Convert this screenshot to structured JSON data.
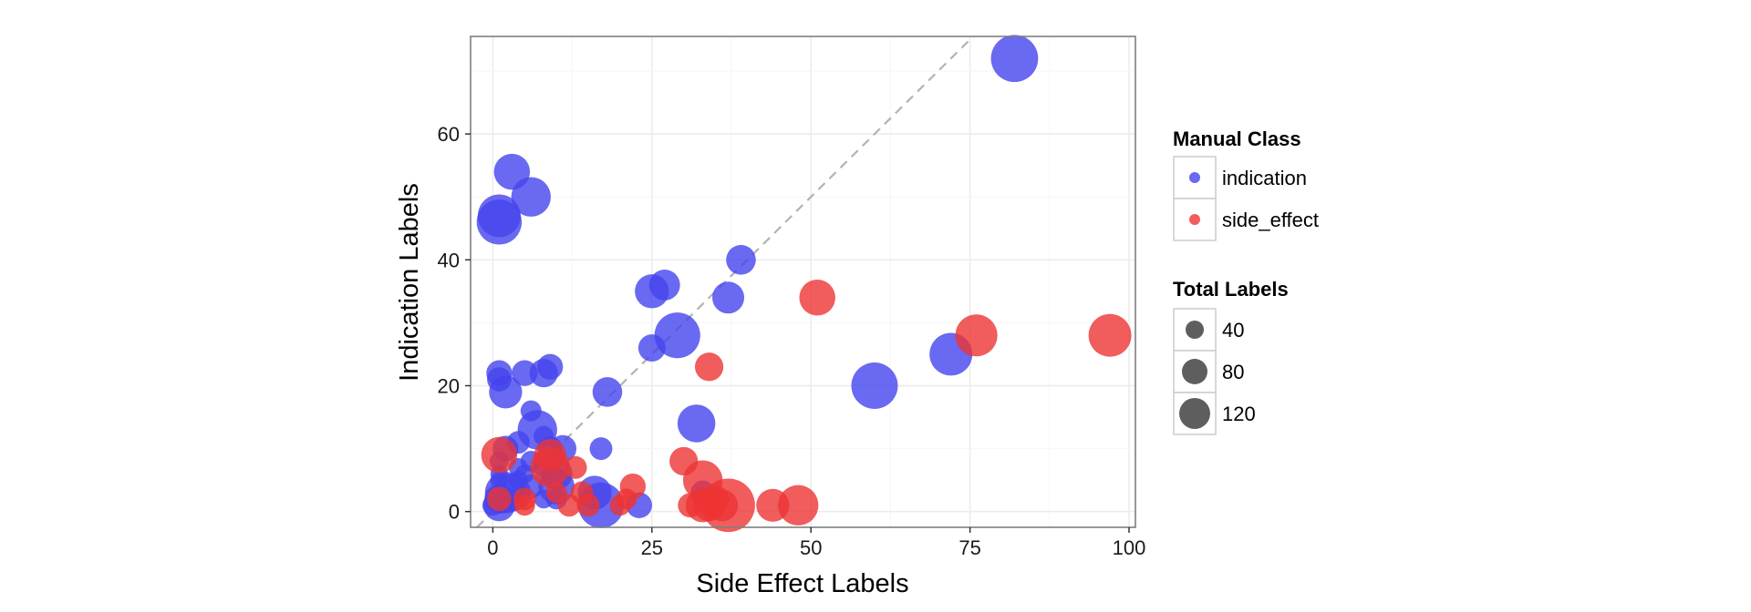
{
  "chart_data": {
    "type": "scatter",
    "title": "",
    "xlabel": "Side Effect Labels",
    "ylabel": "Indication Labels",
    "xlim": [
      -3.5,
      101
    ],
    "ylim": [
      -2.5,
      75.5
    ],
    "xticks": [
      0,
      25,
      50,
      75,
      100
    ],
    "yticks": [
      0,
      20,
      40,
      60
    ],
    "xtick_labels": [
      "0",
      "25",
      "50",
      "75",
      "100"
    ],
    "ytick_labels": [
      "0",
      "20",
      "40",
      "60"
    ],
    "grid": true,
    "reference_line": "y = x (dashed)",
    "legend_position": "right",
    "color_legend": {
      "title": "Manual Class",
      "entries": [
        {
          "label": "indication",
          "color": "#4444ee"
        },
        {
          "label": "side_effect",
          "color": "#ee3333"
        }
      ]
    },
    "size_legend": {
      "title": "Total Labels",
      "entries": [
        {
          "label": "40",
          "value": 40
        },
        {
          "label": "80",
          "value": 80
        },
        {
          "label": "120",
          "value": 120
        }
      ]
    },
    "series": [
      {
        "name": "indication",
        "color": "#4444ee",
        "points": [
          [
            82,
            72,
            150
          ],
          [
            3,
            54,
            80
          ],
          [
            6,
            50,
            100
          ],
          [
            1,
            47,
            120
          ],
          [
            1,
            46,
            135
          ],
          [
            39,
            40,
            50
          ],
          [
            27,
            36,
            55
          ],
          [
            25,
            35,
            70
          ],
          [
            37,
            34,
            60
          ],
          [
            29,
            28,
            140
          ],
          [
            25,
            26,
            40
          ],
          [
            72,
            25,
            120
          ],
          [
            60,
            20,
            145
          ],
          [
            1,
            22,
            35
          ],
          [
            5,
            22,
            35
          ],
          [
            9,
            23,
            35
          ],
          [
            8,
            22,
            45
          ],
          [
            1,
            21,
            30
          ],
          [
            2,
            19,
            65
          ],
          [
            18,
            19,
            50
          ],
          [
            32,
            14,
            90
          ],
          [
            6,
            16,
            20
          ],
          [
            7,
            13,
            100
          ],
          [
            4,
            11,
            25
          ],
          [
            8,
            12,
            18
          ],
          [
            2,
            10,
            35
          ],
          [
            17,
            10,
            25
          ],
          [
            9,
            10,
            30
          ],
          [
            11,
            10,
            40
          ],
          [
            1,
            8,
            15
          ],
          [
            6,
            8,
            20
          ],
          [
            4,
            7,
            15
          ],
          [
            8,
            7,
            20
          ],
          [
            5,
            6,
            15
          ],
          [
            1,
            6,
            12
          ],
          [
            10,
            6,
            60
          ],
          [
            1,
            5,
            12
          ],
          [
            4,
            5,
            15
          ],
          [
            6,
            4,
            30
          ],
          [
            10,
            4,
            80
          ],
          [
            3,
            3,
            90
          ],
          [
            2,
            3,
            110
          ],
          [
            16,
            3,
            70
          ],
          [
            1,
            2,
            50
          ],
          [
            8,
            2,
            15
          ],
          [
            10,
            2,
            20
          ],
          [
            33,
            3,
            30
          ],
          [
            1,
            1,
            60
          ],
          [
            17,
            1,
            140
          ],
          [
            23,
            1,
            35
          ],
          [
            3,
            2,
            20
          ],
          [
            0,
            1,
            20
          ]
        ]
      },
      {
        "name": "side_effect",
        "color": "#ee3333",
        "points": [
          [
            51,
            34,
            80
          ],
          [
            76,
            28,
            115
          ],
          [
            97,
            28,
            120
          ],
          [
            34,
            23,
            45
          ],
          [
            1,
            9,
            80
          ],
          [
            9,
            9,
            60
          ],
          [
            9,
            7,
            100
          ],
          [
            13,
            7,
            25
          ],
          [
            30,
            8,
            45
          ],
          [
            33,
            5,
            100
          ],
          [
            22,
            4,
            35
          ],
          [
            14,
            3,
            25
          ],
          [
            10,
            3,
            20
          ],
          [
            1,
            2,
            30
          ],
          [
            5,
            2,
            25
          ],
          [
            33,
            1,
            70
          ],
          [
            37,
            1,
            200
          ],
          [
            44,
            1,
            65
          ],
          [
            48,
            1,
            105
          ],
          [
            31,
            1,
            30
          ],
          [
            35,
            2,
            40
          ],
          [
            12,
            1,
            25
          ],
          [
            15,
            1,
            25
          ],
          [
            20,
            1,
            20
          ],
          [
            5,
            1,
            20
          ],
          [
            34,
            1,
            60
          ],
          [
            36,
            1,
            60
          ],
          [
            21,
            2,
            20
          ]
        ]
      }
    ]
  }
}
